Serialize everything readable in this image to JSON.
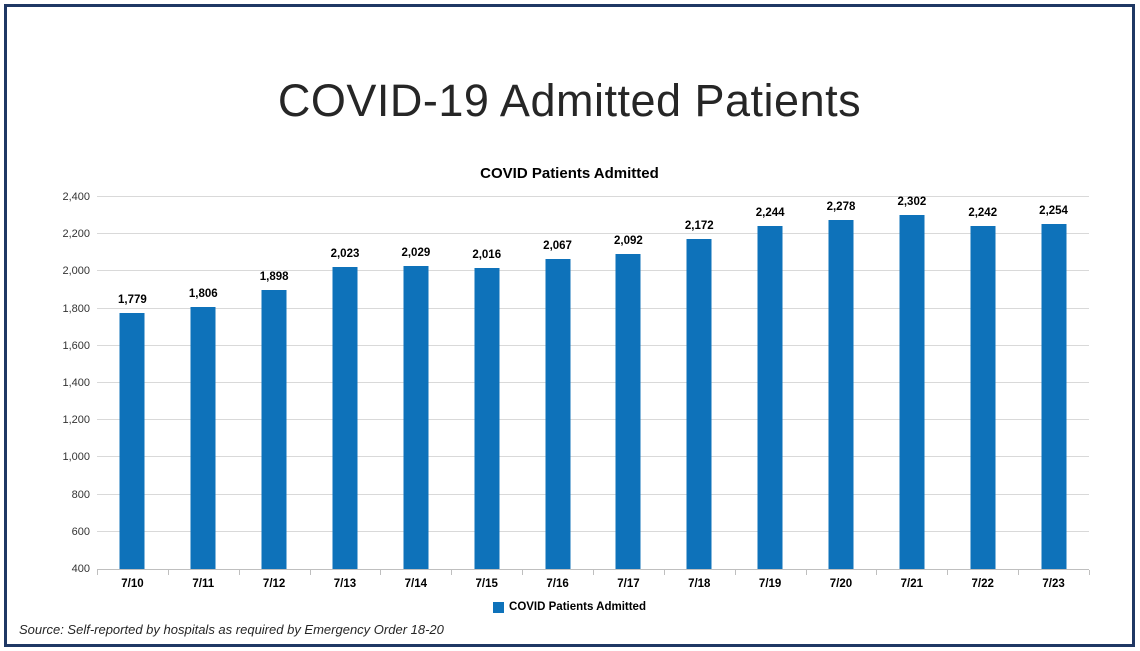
{
  "page": {
    "title": "COVID-19 Admitted Patients",
    "source_note": "Source: Self-reported by hospitals as required by Emergency Order 18-20"
  },
  "legend": {
    "label": "COVID Patients Admitted"
  },
  "chart_data": {
    "type": "bar",
    "title": "COVID Patients Admitted",
    "categories": [
      "7/10",
      "7/11",
      "7/12",
      "7/13",
      "7/14",
      "7/15",
      "7/16",
      "7/17",
      "7/18",
      "7/19",
      "7/20",
      "7/21",
      "7/22",
      "7/23"
    ],
    "series": [
      {
        "name": "COVID Patients Admitted",
        "values": [
          1779,
          1806,
          1898,
          2023,
          2029,
          2016,
          2067,
          2092,
          2172,
          2244,
          2278,
          2302,
          2242,
          2254
        ]
      }
    ],
    "xlabel": "",
    "ylabel": "",
    "ylim": [
      400,
      2400
    ],
    "ytick_step": 200,
    "grid": true,
    "legend_position": "bottom",
    "bar_color": "#0e72ba",
    "frame_color": "#1f3864"
  }
}
